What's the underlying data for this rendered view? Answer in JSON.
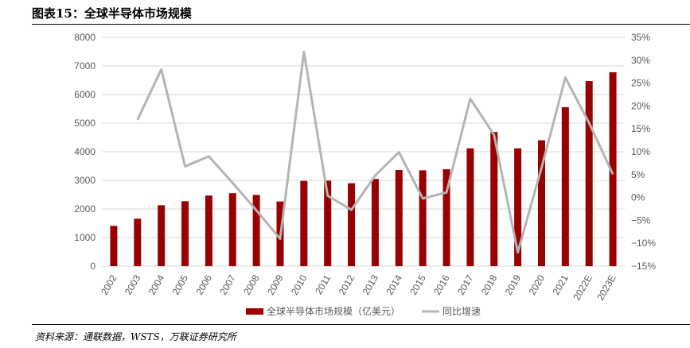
{
  "header": {
    "title": "图表15：全球半导体市场规模"
  },
  "footer": {
    "source": "资料来源：通联数据，WSTS，万联证券研究所"
  },
  "colors": {
    "bar": "#990000",
    "line": "#B4B4B4",
    "grid": "#D9D9D9"
  },
  "chart_data": {
    "type": "bar+line",
    "title": "全球半导体市场规模",
    "categories": [
      "2002",
      "2003",
      "2004",
      "2005",
      "2006",
      "2007",
      "2008",
      "2009",
      "2010",
      "2011",
      "2012",
      "2013",
      "2014",
      "2015",
      "2016",
      "2017",
      "2018",
      "2019",
      "2020",
      "2021",
      "2022E",
      "2023E"
    ],
    "series": [
      {
        "name": "全球半导体市场规模（亿美元）",
        "type": "bar",
        "axis": "left",
        "values": [
          1410,
          1660,
          2130,
          2270,
          2470,
          2550,
          2490,
          2260,
          2980,
          2990,
          2900,
          3050,
          3360,
          3350,
          3390,
          4120,
          4690,
          4120,
          4400,
          5560,
          6470,
          6780
        ]
      },
      {
        "name": "同比增速",
        "type": "line",
        "axis": "right",
        "values": [
          null,
          17.0,
          28.0,
          6.8,
          9.0,
          3.2,
          -2.8,
          -9.0,
          31.8,
          0.4,
          -2.7,
          4.8,
          9.9,
          -0.2,
          1.1,
          21.6,
          13.7,
          -12.0,
          6.5,
          26.2,
          16.3,
          5.1
        ]
      }
    ],
    "y_left": {
      "min": 0,
      "max": 8000,
      "ticks": [
        "0",
        "1000",
        "2000",
        "3000",
        "4000",
        "5000",
        "6000",
        "7000",
        "8000"
      ]
    },
    "y_right": {
      "min": -15,
      "max": 35,
      "ticks": [
        "-15%",
        "-10%",
        "-5%",
        "0%",
        "5%",
        "10%",
        "15%",
        "20%",
        "25%",
        "30%",
        "35%"
      ]
    },
    "grid": true,
    "legend_position": "bottom"
  }
}
